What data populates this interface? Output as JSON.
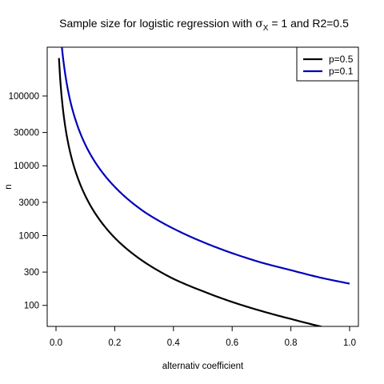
{
  "chart_data": {
    "type": "line",
    "title_parts": {
      "prefix": "Sample size for logistic regression with ",
      "sigma": "σ",
      "subscript": "X",
      "suffix": " = 1 and R2=0.5"
    },
    "xlabel": "alternativ coefficient",
    "ylabel": "n",
    "x_scale": "linear",
    "y_scale": "log",
    "xlim": [
      -0.03,
      1.03
    ],
    "ylim": [
      50,
      500000
    ],
    "x_ticks": [
      0.0,
      0.2,
      0.4,
      0.6,
      0.8,
      1.0
    ],
    "x_tick_labels": [
      "0.0",
      "0.2",
      "0.4",
      "0.6",
      "0.8",
      "1.0"
    ],
    "y_ticks": [
      100,
      300,
      1000,
      3000,
      10000,
      30000,
      100000
    ],
    "y_tick_labels": [
      "100",
      "300",
      "1000",
      "3000",
      "10000",
      "30000",
      "100000"
    ],
    "grid": false,
    "legend_position": "top-right",
    "series": [
      {
        "name": "p=0.5",
        "color": "#000000",
        "x": [
          0.01,
          0.02,
          0.03,
          0.05,
          0.07,
          0.1,
          0.15,
          0.2,
          0.3,
          0.4,
          0.5,
          0.6,
          0.7,
          0.8,
          0.9,
          1.0
        ],
        "y": [
          350000,
          90000,
          40000,
          14500,
          7500,
          3700,
          1650,
          930,
          420,
          240,
          160,
          112,
          83,
          64,
          50,
          41
        ]
      },
      {
        "name": "p=0.1",
        "color": "#0000bb",
        "x": [
          0.02,
          0.03,
          0.05,
          0.07,
          0.1,
          0.15,
          0.2,
          0.3,
          0.4,
          0.5,
          0.6,
          0.7,
          0.8,
          0.9,
          1.0
        ],
        "y": [
          500000,
          225000,
          80000,
          41000,
          20000,
          8900,
          5000,
          2200,
          1260,
          810,
          560,
          410,
          320,
          250,
          205
        ]
      }
    ]
  }
}
